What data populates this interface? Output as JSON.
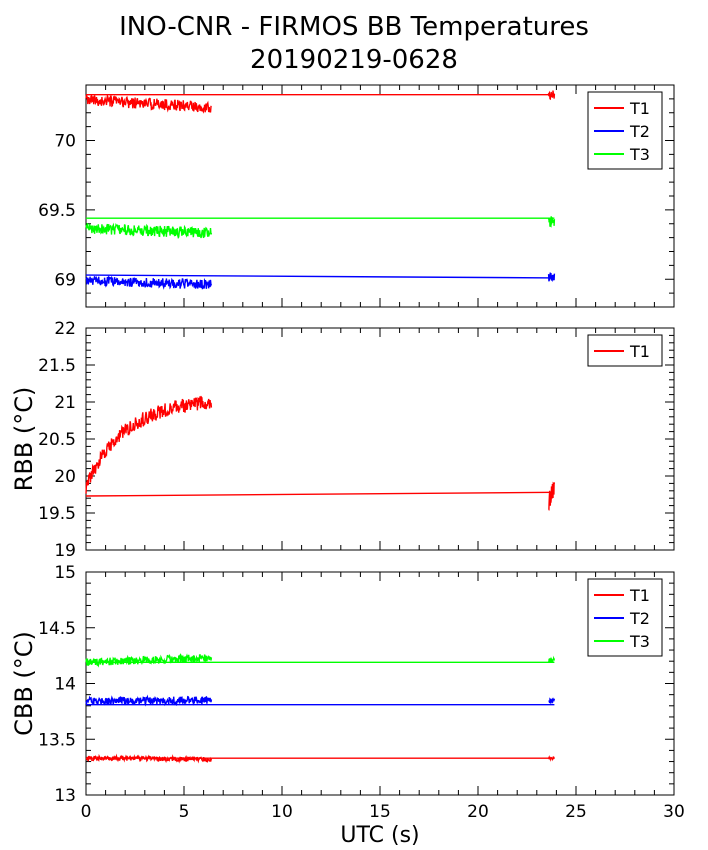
{
  "title_line1": "INO-CNR - FIRMOS BB Temperatures",
  "title_line2": "20190219-0628",
  "xlabel": "UTC (s)",
  "colors": {
    "T1": "#ff0000",
    "T2": "#0000ff",
    "T3": "#00ff00"
  },
  "chart_data": [
    {
      "type": "line",
      "ylabel": "",
      "xlim": [
        0,
        30
      ],
      "ylim": [
        68.8,
        70.4
      ],
      "yticks": [
        69,
        69.5,
        70
      ],
      "yticklabels": [
        "69",
        "69.5",
        "70"
      ],
      "xticklabels": [],
      "legend": "top-right",
      "series": [
        {
          "name": "T1",
          "segments": [
            {
              "x0": 0.0,
              "x1": 6.4,
              "start": 70.29,
              "end": 70.24,
              "noise": 0.04
            },
            {
              "x": [
                0.0,
                23.9
              ],
              "y": [
                70.33,
                70.33
              ]
            },
            {
              "x0": 23.6,
              "x1": 23.9,
              "start": 70.33,
              "end": 70.33,
              "noise": 0.03
            }
          ]
        },
        {
          "name": "T2",
          "segments": [
            {
              "x0": 0.0,
              "x1": 6.4,
              "start": 68.99,
              "end": 68.96,
              "noise": 0.035
            },
            {
              "x": [
                0.0,
                23.9
              ],
              "y": [
                69.03,
                69.01
              ]
            },
            {
              "x0": 23.6,
              "x1": 23.9,
              "start": 69.02,
              "end": 69.03,
              "noise": 0.04
            }
          ]
        },
        {
          "name": "T3",
          "segments": [
            {
              "x0": 0.0,
              "x1": 6.4,
              "start": 69.37,
              "end": 69.33,
              "noise": 0.04
            },
            {
              "x": [
                0.0,
                23.9
              ],
              "y": [
                69.44,
                69.44
              ]
            },
            {
              "x0": 23.6,
              "x1": 23.9,
              "start": 69.41,
              "end": 69.42,
              "noise": 0.04
            }
          ]
        }
      ]
    },
    {
      "type": "line",
      "ylabel": "RBB (°C)",
      "xlim": [
        0,
        30
      ],
      "ylim": [
        19,
        22
      ],
      "yticks": [
        19,
        19.5,
        20,
        20.5,
        21,
        21.5,
        22
      ],
      "yticklabels": [
        "19",
        "19.5",
        "20",
        "20.5",
        "21",
        "21.5",
        "22"
      ],
      "xticklabels": [],
      "legend": "top-right",
      "series": [
        {
          "name": "T1",
          "segments": [
            {
              "x0": 0.0,
              "x1": 6.4,
              "shape": "saturating",
              "start": 19.85,
              "end": 21.0,
              "noise": 0.1
            },
            {
              "x": [
                0.0,
                23.9
              ],
              "y": [
                19.73,
                19.78
              ]
            },
            {
              "x0": 23.6,
              "x1": 23.9,
              "start": 19.65,
              "end": 19.85,
              "noise": 0.12
            }
          ]
        }
      ]
    },
    {
      "type": "line",
      "ylabel": "CBB (°C)",
      "xlim": [
        0,
        30
      ],
      "ylim": [
        13,
        15
      ],
      "yticks": [
        13,
        13.5,
        14,
        14.5,
        15
      ],
      "yticklabels": [
        "13",
        "13.5",
        "14",
        "14.5",
        "15"
      ],
      "xticks": [
        0,
        5,
        10,
        15,
        20,
        25,
        30
      ],
      "xticklabels": [
        "0",
        "5",
        "10",
        "15",
        "20",
        "25",
        "30"
      ],
      "xlabel": "UTC (s)",
      "legend": "top-right",
      "series": [
        {
          "name": "T1",
          "segments": [
            {
              "x0": 0.0,
              "x1": 6.4,
              "start": 13.33,
              "end": 13.32,
              "noise": 0.02
            },
            {
              "x": [
                0.0,
                23.9
              ],
              "y": [
                13.33,
                13.33
              ]
            },
            {
              "x0": 23.6,
              "x1": 23.9,
              "start": 13.33,
              "end": 13.33,
              "noise": 0.01
            }
          ]
        },
        {
          "name": "T2",
          "segments": [
            {
              "x0": 0.0,
              "x1": 6.4,
              "start": 13.84,
              "end": 13.85,
              "noise": 0.035
            },
            {
              "x": [
                0.0,
                23.9
              ],
              "y": [
                13.81,
                13.81
              ]
            },
            {
              "x0": 23.6,
              "x1": 23.9,
              "start": 13.84,
              "end": 13.85,
              "noise": 0.02
            }
          ]
        },
        {
          "name": "T3",
          "segments": [
            {
              "x0": 0.0,
              "x1": 6.4,
              "start": 14.19,
              "end": 14.23,
              "noise": 0.035
            },
            {
              "x": [
                0.0,
                23.9
              ],
              "y": [
                14.19,
                14.19
              ]
            },
            {
              "x0": 23.6,
              "x1": 23.9,
              "start": 14.2,
              "end": 14.21,
              "noise": 0.02
            }
          ]
        }
      ]
    }
  ]
}
